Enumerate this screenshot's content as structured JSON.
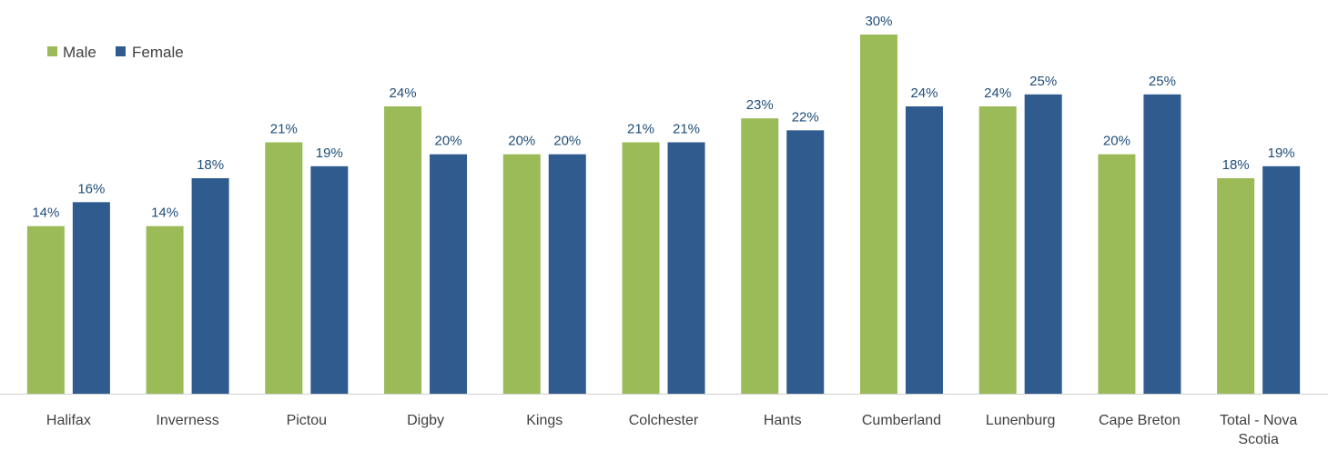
{
  "chart_data": {
    "type": "bar",
    "categories": [
      [
        "Halifax"
      ],
      [
        "Inverness"
      ],
      [
        "Pictou"
      ],
      [
        "Digby"
      ],
      [
        "Kings"
      ],
      [
        "Colchester"
      ],
      [
        "Hants"
      ],
      [
        "Cumberland"
      ],
      [
        "Lunenburg"
      ],
      [
        "Cape Breton"
      ],
      [
        "Total - Nova",
        "Scotia"
      ]
    ],
    "series": [
      {
        "name": "Male",
        "color": "#9bbb59",
        "values": [
          14,
          14,
          21,
          24,
          20,
          21,
          23,
          30,
          24,
          20,
          18
        ],
        "labels": [
          "14%",
          "14%",
          "21%",
          "24%",
          "20%",
          "21%",
          "23%",
          "30%",
          "24%",
          "20%",
          "18%"
        ]
      },
      {
        "name": "Female",
        "color": "#2f5b8f",
        "values": [
          16,
          18,
          19,
          20,
          20,
          21,
          22,
          24,
          25,
          25,
          19
        ],
        "labels": [
          "16%",
          "18%",
          "19%",
          "20%",
          "20%",
          "21%",
          "22%",
          "24%",
          "25%",
          "25%",
          "19%"
        ]
      }
    ],
    "ylim": [
      0,
      30
    ],
    "grid": false,
    "legend": "top-left",
    "title": "",
    "xlabel": "",
    "ylabel": ""
  }
}
